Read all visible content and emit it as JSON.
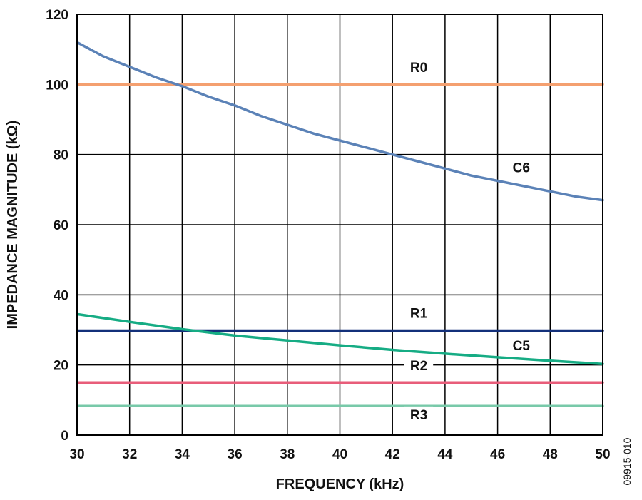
{
  "chart_data": {
    "type": "line",
    "xlabel": "FREQUENCY (kHz)",
    "ylabel": "IMPEDANCE MAGNITUDE (kΩ)",
    "xlim": [
      30,
      50
    ],
    "ylim": [
      0,
      120
    ],
    "x_ticks": [
      30,
      32,
      34,
      36,
      38,
      40,
      42,
      44,
      46,
      48,
      50
    ],
    "y_ticks": [
      0,
      20,
      40,
      60,
      80,
      100,
      120
    ],
    "grid": true,
    "legend": "none",
    "series": [
      {
        "name": "R0",
        "color": "#f4a070",
        "x": [
          30,
          50
        ],
        "y": [
          100,
          100
        ],
        "label_at": [
          43,
          103.5
        ]
      },
      {
        "name": "C6",
        "color": "#5b82b7",
        "x": [
          30,
          31,
          32,
          33,
          34,
          35,
          36,
          37,
          38,
          39,
          40,
          41,
          42,
          43,
          44,
          45,
          46,
          47,
          48,
          49,
          50
        ],
        "y": [
          112,
          108,
          105,
          102,
          99.5,
          96.5,
          94,
          91,
          88.5,
          86,
          84,
          82,
          80,
          78,
          76,
          74,
          72.5,
          71,
          69.5,
          68,
          67
        ],
        "label_at": [
          46.9,
          75
        ]
      },
      {
        "name": "R1",
        "color": "#13307a",
        "x": [
          30,
          50
        ],
        "y": [
          29.8,
          29.8
        ],
        "label_at": [
          43,
          33.5
        ]
      },
      {
        "name": "C5",
        "color": "#16ac84",
        "x": [
          30,
          32,
          34,
          36,
          38,
          40,
          42,
          44,
          46,
          48,
          50
        ],
        "y": [
          34.5,
          32.3,
          30.2,
          28.4,
          27,
          25.6,
          24.3,
          23.2,
          22.2,
          21.2,
          20.3
        ],
        "label_at": [
          46.9,
          24.2
        ]
      },
      {
        "name": "R2",
        "color": "#e85d7a",
        "x": [
          30,
          50
        ],
        "y": [
          15,
          15
        ],
        "label_at": [
          43,
          18.5
        ]
      },
      {
        "name": "R3",
        "color": "#78c9a9",
        "x": [
          30,
          50
        ],
        "y": [
          8.3,
          8.3
        ],
        "label_at": [
          43,
          4.5
        ]
      }
    ]
  },
  "figure_id": "09915-010"
}
